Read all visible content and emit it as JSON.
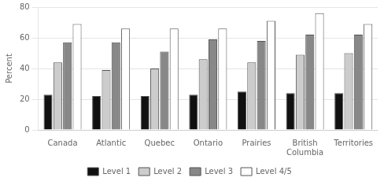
{
  "chart_data": {
    "type": "bar",
    "y_label": "Percent",
    "categories": [
      "Canada",
      "Atlantic",
      "Quebec",
      "Ontario",
      "Prairies",
      "British\nColumbia",
      "Territories"
    ],
    "series": [
      {
        "name": "Level 1",
        "color": "#111111",
        "values": [
          23,
          22,
          22,
          23,
          25,
          24,
          24
        ]
      },
      {
        "name": "Level 2",
        "color": "#cccccc",
        "values": [
          44,
          39,
          40,
          46,
          44,
          49,
          50
        ]
      },
      {
        "name": "Level 3",
        "color": "#888888",
        "values": [
          57,
          57,
          51,
          59,
          58,
          62,
          62
        ]
      },
      {
        "name": "Level 4/5",
        "color": "#ffffff",
        "values": [
          69,
          66,
          66,
          66,
          71,
          76,
          69
        ]
      }
    ],
    "ylim": [
      0,
      80
    ],
    "yticks": [
      0,
      20,
      40,
      60,
      80
    ],
    "grid": true,
    "legend": "bottom"
  }
}
